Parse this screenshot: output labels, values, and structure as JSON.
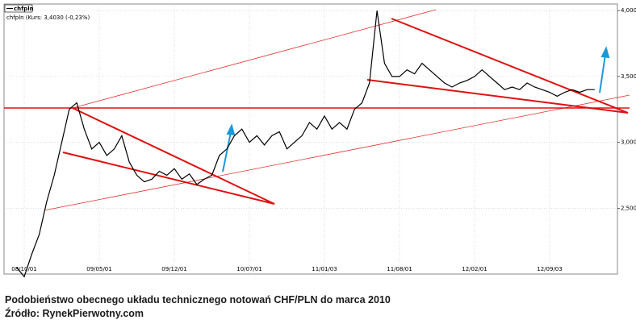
{
  "chart_data": {
    "type": "line",
    "legend_title": "chfpln",
    "legend_detail": "chfpln (Kurs: 3,4030 (-0,23%)",
    "categories": [
      null,
      "08/10/01",
      null,
      null,
      null,
      null,
      null,
      null,
      null,
      null,
      null,
      "09/05/01",
      null,
      null,
      null,
      null,
      null,
      null,
      null,
      null,
      null,
      "09/12/01",
      null,
      null,
      null,
      null,
      null,
      null,
      null,
      null,
      null,
      "10/07/01",
      null,
      null,
      null,
      null,
      null,
      null,
      null,
      null,
      null,
      "11/01/03",
      null,
      null,
      null,
      null,
      null,
      null,
      null,
      null,
      null,
      "11/08/01",
      null,
      null,
      null,
      null,
      null,
      null,
      null,
      null,
      null,
      "12/02/01",
      null,
      null,
      null,
      null,
      null,
      null,
      null,
      null,
      null,
      "12/09/03",
      null,
      null,
      null,
      null,
      null,
      null,
      null,
      null
    ],
    "series": [
      {
        "name": "chfpln",
        "color": "#000000",
        "values": [
          2.05,
          1.98,
          2.15,
          2.3,
          2.55,
          2.75,
          3.0,
          3.25,
          3.3,
          3.1,
          2.95,
          3.0,
          2.9,
          2.95,
          3.05,
          2.85,
          2.75,
          2.7,
          2.72,
          2.78,
          2.75,
          2.8,
          2.72,
          2.76,
          2.68,
          2.72,
          2.75,
          2.9,
          2.95,
          3.05,
          3.1,
          3.0,
          3.05,
          2.98,
          3.05,
          3.08,
          2.95,
          3.0,
          3.05,
          3.15,
          3.1,
          3.2,
          3.1,
          3.15,
          3.1,
          3.25,
          3.3,
          3.45,
          4.0,
          3.6,
          3.5,
          3.5,
          3.55,
          3.52,
          3.6,
          3.55,
          3.5,
          3.45,
          3.42,
          3.45,
          3.47,
          3.5,
          3.55,
          3.5,
          3.45,
          3.4,
          3.42,
          3.4,
          3.45,
          3.42,
          3.4,
          3.38,
          3.35,
          3.38,
          3.4,
          3.38,
          3.4,
          3.4,
          null,
          null
        ]
      }
    ],
    "ylim": [
      2.0,
      4.05
    ],
    "yticks": [
      {
        "value": 2.5,
        "label": "2,5000"
      },
      {
        "value": 3.0,
        "label": "3,0000"
      },
      {
        "value": 3.5,
        "label": "3,5000"
      },
      {
        "value": 4.0,
        "label": "4,0000"
      }
    ],
    "grid": true
  },
  "caption": {
    "line1": "Podobieństwo obecnego układu technicznego notowań CHF/PLN do marca 2010",
    "line2": "Źródło: RynekPierwotny.com"
  }
}
